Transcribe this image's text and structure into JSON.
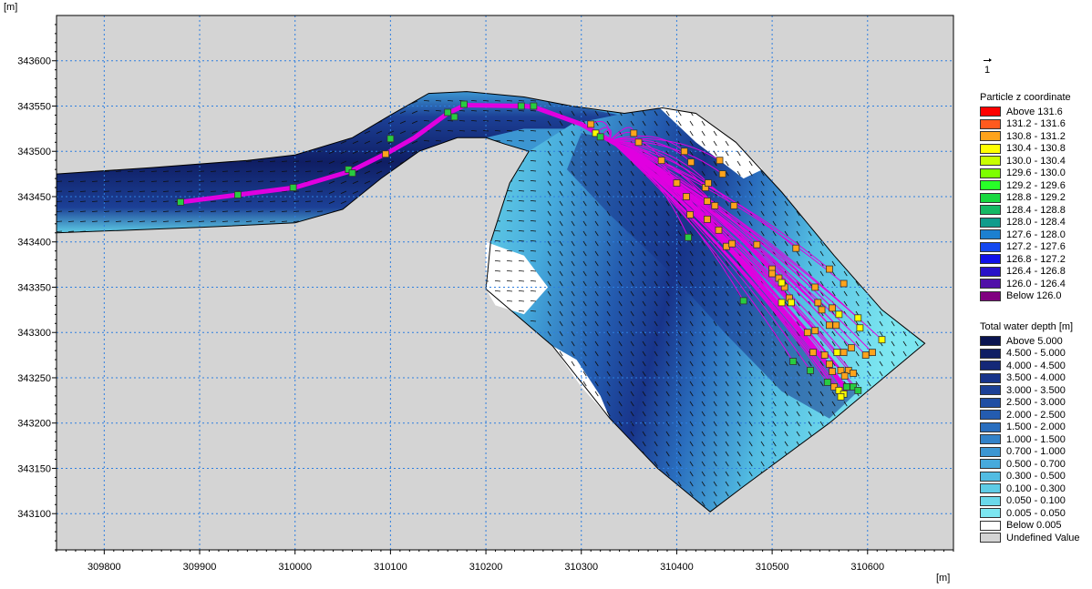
{
  "axes": {
    "x_unit": "[m]",
    "y_unit": "[m]",
    "x_range": [
      309750,
      310690
    ],
    "y_range": [
      343060,
      343650
    ],
    "x_ticks": [
      309800,
      309900,
      310000,
      310100,
      310200,
      310300,
      310400,
      310500,
      310600
    ],
    "y_ticks": [
      343100,
      343150,
      343200,
      343250,
      343300,
      343350,
      343400,
      343450,
      343500,
      343550,
      343600
    ],
    "grid": true
  },
  "colors": {
    "undefined_background": "#d4d4d4",
    "grid": "#2e7fe0",
    "particle_track": "#e000e0",
    "vector": "#101010"
  },
  "vector_legend": {
    "label": "1"
  },
  "particle_legend": {
    "title": "Particle z coordinate",
    "items": [
      {
        "label": "Above  131.6",
        "color": "#ff0000"
      },
      {
        "label": "131.2 - 131.6",
        "color": "#ff5a1e"
      },
      {
        "label": "130.8 - 131.2",
        "color": "#ffa31c"
      },
      {
        "label": "130.4 - 130.8",
        "color": "#ffff00"
      },
      {
        "label": "130.0 - 130.4",
        "color": "#c8ff00"
      },
      {
        "label": "129.6 - 130.0",
        "color": "#7dff00"
      },
      {
        "label": "129.2 - 129.6",
        "color": "#28ff28"
      },
      {
        "label": "128.8 - 129.2",
        "color": "#18d840"
      },
      {
        "label": "128.4 - 128.8",
        "color": "#14b864"
      },
      {
        "label": "128.0 - 128.4",
        "color": "#109c8c"
      },
      {
        "label": "127.6 - 128.0",
        "color": "#1c80d0"
      },
      {
        "label": "127.2 - 127.6",
        "color": "#1448f0"
      },
      {
        "label": "126.8 - 127.2",
        "color": "#1010e8"
      },
      {
        "label": "126.4 - 126.8",
        "color": "#2810c8"
      },
      {
        "label": "126.0 - 126.4",
        "color": "#5010a8"
      },
      {
        "label": "Below  126.0",
        "color": "#800080"
      }
    ]
  },
  "depth_legend": {
    "title": "Total water depth [m]",
    "items": [
      {
        "label": "Above  5.000",
        "color": "#0a1450"
      },
      {
        "label": "4.500 - 5.000",
        "color": "#0f1e64"
      },
      {
        "label": "4.000 - 4.500",
        "color": "#142878"
      },
      {
        "label": "3.500 - 4.000",
        "color": "#18348a"
      },
      {
        "label": "3.000 - 3.500",
        "color": "#1c4096"
      },
      {
        "label": "2.500 - 3.000",
        "color": "#204ea4"
      },
      {
        "label": "2.000 - 2.500",
        "color": "#245cb0"
      },
      {
        "label": "1.500 - 2.000",
        "color": "#2a6ebe"
      },
      {
        "label": "1.000 - 1.500",
        "color": "#3282c8"
      },
      {
        "label": "0.700 - 1.000",
        "color": "#3c96d2"
      },
      {
        "label": "0.500 - 0.700",
        "color": "#46aadc"
      },
      {
        "label": "0.300 - 0.500",
        "color": "#52bce2"
      },
      {
        "label": "0.100 - 0.300",
        "color": "#5ecce6"
      },
      {
        "label": "0.050 - 0.100",
        "color": "#6ad8ea"
      },
      {
        "label": "0.005 - 0.050",
        "color": "#7ce6f0"
      },
      {
        "label": "Below  0.005",
        "color": "#ffffff"
      },
      {
        "label": "Undefined Value",
        "color": "#d4d4d4"
      }
    ]
  },
  "chart_data": {
    "type": "scatter",
    "title": "",
    "xlabel": "[m]",
    "ylabel": "[m]",
    "xlim": [
      309750,
      310690
    ],
    "ylim": [
      343060,
      343650
    ],
    "mesh_outline": [
      [
        309750,
        343475
      ],
      [
        309850,
        343482
      ],
      [
        309950,
        343490
      ],
      [
        310000,
        343496
      ],
      [
        310060,
        343515
      ],
      [
        310100,
        343540
      ],
      [
        310140,
        343564
      ],
      [
        310180,
        343566
      ],
      [
        310240,
        343560
      ],
      [
        310290,
        343550
      ],
      [
        310345,
        343542
      ],
      [
        310385,
        343548
      ],
      [
        310420,
        343542
      ],
      [
        310462,
        343510
      ],
      [
        310510,
        343455
      ],
      [
        310565,
        343385
      ],
      [
        310615,
        343325
      ],
      [
        310660,
        343288
      ],
      [
        310560,
        343200
      ],
      [
        310470,
        343130
      ],
      [
        310435,
        343102
      ],
      [
        310380,
        343150
      ],
      [
        310330,
        343205
      ],
      [
        310270,
        343285
      ],
      [
        310220,
        343330
      ],
      [
        310200,
        343348
      ],
      [
        310205,
        343400
      ],
      [
        310225,
        343465
      ],
      [
        310245,
        343500
      ],
      [
        310220,
        343508
      ],
      [
        310200,
        343515
      ],
      [
        310170,
        343515
      ],
      [
        310130,
        343500
      ],
      [
        310090,
        343470
      ],
      [
        310050,
        343436
      ],
      [
        310000,
        343421
      ],
      [
        309900,
        343416
      ],
      [
        309800,
        343412
      ],
      [
        309750,
        343410
      ]
    ],
    "white_zones": [
      [
        [
          310200,
          343400
        ],
        [
          310240,
          343385
        ],
        [
          310265,
          343350
        ],
        [
          310240,
          343320
        ],
        [
          310210,
          343330
        ],
        [
          310200,
          343348
        ]
      ],
      [
        [
          310380,
          343550
        ],
        [
          310420,
          343542
        ],
        [
          310462,
          343510
        ],
        [
          310490,
          343480
        ],
        [
          310470,
          343470
        ],
        [
          310420,
          343510
        ]
      ],
      [
        [
          310270,
          343285
        ],
        [
          310300,
          343240
        ],
        [
          310330,
          343205
        ],
        [
          310320,
          343230
        ],
        [
          310295,
          343270
        ]
      ]
    ],
    "particle_track": [
      [
        309880,
        343444
      ],
      [
        309940,
        343452
      ],
      [
        310000,
        343460
      ],
      [
        310058,
        343478
      ],
      [
        310100,
        343500
      ],
      [
        310125,
        343515
      ],
      [
        310160,
        343542
      ],
      [
        310178,
        343551
      ],
      [
        310240,
        343550
      ],
      [
        310250,
        343549
      ],
      [
        310300,
        343530
      ],
      [
        310330,
        343512
      ],
      [
        310370,
        343488
      ],
      [
        310410,
        343448
      ],
      [
        310450,
        343400
      ],
      [
        310490,
        343350
      ],
      [
        310530,
        343300
      ],
      [
        310560,
        343262
      ],
      [
        310578,
        343235
      ]
    ],
    "particles": [
      {
        "x": 309880,
        "y": 343444,
        "c": "#28cc40"
      },
      {
        "x": 309940,
        "y": 343452,
        "c": "#28cc40"
      },
      {
        "x": 309998,
        "y": 343460,
        "c": "#28cc40"
      },
      {
        "x": 310056,
        "y": 343480,
        "c": "#28cc40"
      },
      {
        "x": 310060,
        "y": 343476,
        "c": "#28cc40"
      },
      {
        "x": 310095,
        "y": 343497,
        "c": "#ffa31c"
      },
      {
        "x": 310100,
        "y": 343514,
        "c": "#28cc40"
      },
      {
        "x": 310160,
        "y": 343543,
        "c": "#28cc40"
      },
      {
        "x": 310167,
        "y": 343538,
        "c": "#28cc40"
      },
      {
        "x": 310177,
        "y": 343552,
        "c": "#28cc40"
      },
      {
        "x": 310237,
        "y": 343550,
        "c": "#28cc40"
      },
      {
        "x": 310250,
        "y": 343550,
        "c": "#28cc40"
      },
      {
        "x": 310310,
        "y": 343530,
        "c": "#ffa31c"
      },
      {
        "x": 310315,
        "y": 343520,
        "c": "#ffff00"
      },
      {
        "x": 310320,
        "y": 343516,
        "c": "#28cc40"
      },
      {
        "x": 310355,
        "y": 343520,
        "c": "#ffa31c"
      },
      {
        "x": 310360,
        "y": 343510,
        "c": "#ffa31c"
      },
      {
        "x": 310384,
        "y": 343490,
        "c": "#ffa31c"
      },
      {
        "x": 310400,
        "y": 343465,
        "c": "#ffa31c"
      },
      {
        "x": 310408,
        "y": 343500,
        "c": "#ffa31c"
      },
      {
        "x": 310415,
        "y": 343488,
        "c": "#ffa31c"
      },
      {
        "x": 310445,
        "y": 343490,
        "c": "#ffa31c"
      },
      {
        "x": 310448,
        "y": 343475,
        "c": "#ffa31c"
      },
      {
        "x": 310430,
        "y": 343460,
        "c": "#ffa31c"
      },
      {
        "x": 310433,
        "y": 343465,
        "c": "#ffa31c"
      },
      {
        "x": 310410,
        "y": 343450,
        "c": "#ffa31c"
      },
      {
        "x": 310432,
        "y": 343445,
        "c": "#ffa31c"
      },
      {
        "x": 310440,
        "y": 343440,
        "c": "#ffa31c"
      },
      {
        "x": 310414,
        "y": 343430,
        "c": "#ffa31c"
      },
      {
        "x": 310432,
        "y": 343425,
        "c": "#ffa31c"
      },
      {
        "x": 310460,
        "y": 343440,
        "c": "#ffa31c"
      },
      {
        "x": 310444,
        "y": 343413,
        "c": "#ffa31c"
      },
      {
        "x": 310412,
        "y": 343405,
        "c": "#28cc40"
      },
      {
        "x": 310452,
        "y": 343395,
        "c": "#ffa31c"
      },
      {
        "x": 310458,
        "y": 343398,
        "c": "#ffa31c"
      },
      {
        "x": 310484,
        "y": 343397,
        "c": "#ffa31c"
      },
      {
        "x": 310500,
        "y": 343370,
        "c": "#ffa31c"
      },
      {
        "x": 310507,
        "y": 343360,
        "c": "#ffa31c"
      },
      {
        "x": 310513,
        "y": 343350,
        "c": "#ffa31c"
      },
      {
        "x": 310525,
        "y": 343393,
        "c": "#ffa31c"
      },
      {
        "x": 310500,
        "y": 343365,
        "c": "#ffa31c"
      },
      {
        "x": 310510,
        "y": 343355,
        "c": "#ffff00"
      },
      {
        "x": 310560,
        "y": 343370,
        "c": "#ffa31c"
      },
      {
        "x": 310545,
        "y": 343350,
        "c": "#ffa31c"
      },
      {
        "x": 310575,
        "y": 343354,
        "c": "#ffa31c"
      },
      {
        "x": 310510,
        "y": 343333,
        "c": "#ffff00"
      },
      {
        "x": 310518,
        "y": 343338,
        "c": "#ffa31c"
      },
      {
        "x": 310520,
        "y": 343333,
        "c": "#ffff00"
      },
      {
        "x": 310548,
        "y": 343333,
        "c": "#ffa31c"
      },
      {
        "x": 310552,
        "y": 343325,
        "c": "#ffa31c"
      },
      {
        "x": 310563,
        "y": 343327,
        "c": "#ffa31c"
      },
      {
        "x": 310470,
        "y": 343335,
        "c": "#28cc40"
      },
      {
        "x": 310545,
        "y": 343302,
        "c": "#ffa31c"
      },
      {
        "x": 310560,
        "y": 343308,
        "c": "#ffa31c"
      },
      {
        "x": 310567,
        "y": 343308,
        "c": "#ffa31c"
      },
      {
        "x": 310570,
        "y": 343320,
        "c": "#ffff00"
      },
      {
        "x": 310590,
        "y": 343316,
        "c": "#ffff00"
      },
      {
        "x": 310592,
        "y": 343305,
        "c": "#ffff00"
      },
      {
        "x": 310537,
        "y": 343300,
        "c": "#ffa31c"
      },
      {
        "x": 310583,
        "y": 343283,
        "c": "#ffa31c"
      },
      {
        "x": 310543,
        "y": 343278,
        "c": "#ffa31c"
      },
      {
        "x": 310555,
        "y": 343275,
        "c": "#ffa31c"
      },
      {
        "x": 310568,
        "y": 343278,
        "c": "#ffff00"
      },
      {
        "x": 310575,
        "y": 343278,
        "c": "#ffa31c"
      },
      {
        "x": 310615,
        "y": 343292,
        "c": "#ffff00"
      },
      {
        "x": 310605,
        "y": 343278,
        "c": "#ffa31c"
      },
      {
        "x": 310598,
        "y": 343275,
        "c": "#ffa31c"
      },
      {
        "x": 310522,
        "y": 343268,
        "c": "#28cc40"
      },
      {
        "x": 310540,
        "y": 343258,
        "c": "#28cc40"
      },
      {
        "x": 310560,
        "y": 343265,
        "c": "#ffa31c"
      },
      {
        "x": 310563,
        "y": 343257,
        "c": "#ffa31c"
      },
      {
        "x": 310572,
        "y": 343258,
        "c": "#ffa31c"
      },
      {
        "x": 310580,
        "y": 343258,
        "c": "#ffa31c"
      },
      {
        "x": 310585,
        "y": 343255,
        "c": "#ffa31c"
      },
      {
        "x": 310576,
        "y": 343252,
        "c": "#ffa31c"
      },
      {
        "x": 310558,
        "y": 343245,
        "c": "#28cc40"
      },
      {
        "x": 310565,
        "y": 343240,
        "c": "#ffa31c"
      },
      {
        "x": 310570,
        "y": 343236,
        "c": "#ffff00"
      },
      {
        "x": 310575,
        "y": 343232,
        "c": "#ffff00"
      },
      {
        "x": 310578,
        "y": 343240,
        "c": "#28cc40"
      },
      {
        "x": 310585,
        "y": 343240,
        "c": "#28cc40"
      },
      {
        "x": 310590,
        "y": 343236,
        "c": "#28cc40"
      },
      {
        "x": 310572,
        "y": 343229,
        "c": "#ffff00"
      }
    ]
  }
}
